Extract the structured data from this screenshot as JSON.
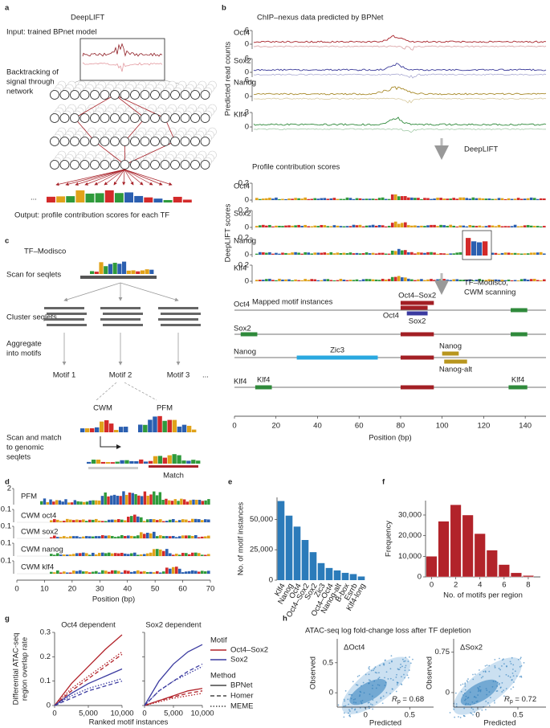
{
  "panel_a": {
    "letter": "a",
    "title": "DeepLIFT",
    "input": "Input: trained BPnet model",
    "backtrack": [
      "Backtracking of",
      "signal through",
      "network"
    ],
    "ellipsis": "...",
    "output": "Output: profile contribution scores for each TF"
  },
  "panel_b": {
    "letter": "b",
    "title": "ChIP–nexus data predicted by BPNet",
    "ylabel": "Predicted read counts",
    "tracks": [
      {
        "name": "Oct4",
        "color": "#a8232a",
        "yticks": [
          0,
          6
        ]
      },
      {
        "name": "Sox2",
        "color": "#3b3b9a",
        "yticks": [
          0,
          6
        ]
      },
      {
        "name": "Nanog",
        "color": "#a88a2a",
        "yticks": [
          0,
          6
        ]
      },
      {
        "name": "Klf4",
        "color": "#2f8a3b",
        "yticks": [
          0,
          3
        ]
      }
    ],
    "step1": "DeepLIFT",
    "contrib_title": "Profile contribution scores",
    "contrib_ylabel": "DeepLIFT scores",
    "contrib_yticks": [
      0,
      0.2
    ],
    "step2": [
      "TF–Modisco,",
      "CWM scanning"
    ],
    "motif_title": "Mapped motif instances",
    "lanes": [
      [
        {
          "start": 80,
          "end": 96,
          "color": "#a31f24",
          "label": "Oct4–Sox2"
        },
        {
          "start": 80,
          "end": 93,
          "color": "#a31f24",
          "label": "Oct4"
        },
        {
          "start": 83,
          "end": 93,
          "color": "#3a3aa0",
          "label": "Sox2"
        },
        {
          "start": 133,
          "end": 141,
          "color": "#2f8a3b"
        }
      ],
      [
        {
          "start": 3,
          "end": 11,
          "color": "#2f8a3b"
        },
        {
          "start": 80,
          "end": 96,
          "color": "#a31f24"
        },
        {
          "start": 133,
          "end": 141,
          "color": "#2f8a3b"
        }
      ],
      [
        {
          "start": 30,
          "end": 69,
          "color": "#29a8e0",
          "label": "Zic3"
        },
        {
          "start": 80,
          "end": 96,
          "color": "#a31f24"
        },
        {
          "start": 100,
          "end": 108,
          "color": "#b8961e",
          "label": "Nanog"
        },
        {
          "start": 101,
          "end": 112,
          "color": "#b8961e",
          "label": "Nanog-alt"
        }
      ],
      [
        {
          "start": 10,
          "end": 18,
          "color": "#2f8a3b",
          "label": "Klf4"
        },
        {
          "start": 80,
          "end": 96,
          "color": "#a31f24"
        },
        {
          "start": 132,
          "end": 141,
          "color": "#2f8a3b",
          "label": "Klf4"
        }
      ]
    ],
    "xlim": [
      0,
      150
    ],
    "xticks": [
      0,
      20,
      40,
      60,
      80,
      100,
      120,
      140
    ],
    "xlabel": "Position (bp)"
  },
  "panel_c": {
    "letter": "c",
    "title": "TF–Modisco",
    "scan": "Scan for seqlets",
    "cluster": "Cluster seqlets",
    "aggregate": [
      "Aggregate",
      "into motifs"
    ],
    "motifs": [
      "Motif 1",
      "Motif 2",
      "Motif 3"
    ],
    "ellipsis": "...",
    "cwm": "CWM",
    "pfm": "PFM",
    "match_steps": [
      "Scan and match",
      "to genomic",
      "seqlets"
    ],
    "match_label": "Match"
  },
  "panel_d": {
    "letter": "d",
    "rows": [
      {
        "name": "PFM",
        "ytick": 2
      },
      {
        "name": "CWM oct4",
        "ytick": 0.1
      },
      {
        "name": "CWM sox2",
        "ytick": 0.1
      },
      {
        "name": "CWM nanog",
        "ytick": 0.1
      },
      {
        "name": "CWM klf4",
        "ytick": 0.1
      }
    ],
    "xlim": [
      0,
      70
    ],
    "xticks": [
      0,
      10,
      20,
      30,
      40,
      50,
      60,
      70
    ],
    "xlabel": "Position (bp)"
  },
  "chart_data": [
    {
      "type": "bar",
      "letter": "e",
      "ylabel": "No. of motif instances",
      "categories": [
        "Klf4",
        "Nanog",
        "Oct4",
        "Oct4–Sox2",
        "Sox2",
        "Zic3",
        "Oct4–Oct4",
        "Nanog-alt",
        "B-box",
        "Esrrb",
        "Klf4-long"
      ],
      "values": [
        65000,
        53000,
        44000,
        33000,
        23000,
        14000,
        10000,
        8000,
        6000,
        5000,
        3000
      ],
      "color": "#2b7bba",
      "ylim": [
        0,
        68000
      ],
      "yticks": [
        0,
        {
          "value": 25000,
          "label": "25,000"
        },
        {
          "value": 50000,
          "label": "50,000"
        }
      ]
    },
    {
      "type": "histogram",
      "letter": "f",
      "ylabel": "Frequency",
      "xlabel": "No. of motifs per region",
      "x": [
        0,
        1,
        2,
        3,
        4,
        5,
        6,
        7,
        8
      ],
      "values": [
        10000,
        27000,
        35000,
        30000,
        21000,
        13000,
        6000,
        2000,
        700
      ],
      "color": "#b2232a",
      "xlim": [
        -0.5,
        9
      ],
      "xticks": [
        0,
        2,
        4,
        6,
        8
      ],
      "ylim": [
        0,
        37000
      ],
      "yticks": [
        0,
        {
          "value": 10000,
          "label": "10,000"
        },
        {
          "value": 20000,
          "label": "20,000"
        },
        {
          "value": 30000,
          "label": "30,000"
        }
      ]
    },
    {
      "type": "line",
      "letter": "g",
      "ylabel": [
        "Differential ATAC-seq",
        "region overlap rate"
      ],
      "xlabel": "Ranked motif instances",
      "x": [
        0,
        2500,
        5000,
        7500,
        10000
      ],
      "xlim": [
        0,
        10000
      ],
      "xticks": [
        0,
        {
          "value": 5000,
          "label": "5,000"
        },
        {
          "value": 10000,
          "label": "10,000"
        }
      ],
      "ylim": [
        0,
        0.3
      ],
      "yticks": [
        0,
        0.1,
        0.2,
        0.3
      ],
      "legend": {
        "motif_title": "Motif",
        "method_title": "Method",
        "motifs": [
          {
            "name": "Oct4–Sox2",
            "color": "#b2232a"
          },
          {
            "name": "Sox2",
            "color": "#3b3ba0"
          }
        ],
        "methods": [
          {
            "name": "BPNet",
            "dash": "solid"
          },
          {
            "name": "Homer",
            "dash": "dashed"
          },
          {
            "name": "MEME",
            "dash": "dotted"
          }
        ]
      },
      "panels": [
        {
          "title": "Oct4 dependent",
          "series": [
            [
              [
                0,
                0.09,
                0.16,
                0.23,
                0.29
              ],
              [
                0,
                0.06,
                0.11,
                0.16,
                0.21
              ],
              [
                0,
                0.07,
                0.12,
                0.17,
                0.22
              ]
            ],
            [
              [
                0,
                0.05,
                0.09,
                0.12,
                0.15
              ],
              [
                0,
                0.03,
                0.06,
                0.08,
                0.1
              ],
              [
                0,
                0.04,
                0.07,
                0.09,
                0.11
              ]
            ]
          ]
        },
        {
          "title": "Sox2 dependent",
          "series": [
            [
              [
                0,
                0.02,
                0.04,
                0.06,
                0.07
              ],
              [
                0,
                0.02,
                0.035,
                0.05,
                0.06
              ],
              [
                0,
                0.015,
                0.03,
                0.04,
                0.05
              ]
            ],
            [
              [
                0,
                0.1,
                0.17,
                0.22,
                0.25
              ],
              [
                0,
                0.06,
                0.1,
                0.14,
                0.17
              ],
              [
                0,
                0.06,
                0.1,
                0.13,
                0.16
              ]
            ]
          ]
        }
      ]
    }
  ],
  "panel_h": {
    "letter": "h",
    "title": "ATAC-seq log fold-change loss after TF depletion",
    "plots": [
      {
        "label": "ΔOct4",
        "ylabel": "Observed",
        "xlabel": "Predicted",
        "xlim": [
          -0.32,
          0.77
        ],
        "ylim": [
          -0.24,
          0.9
        ],
        "xticks": [
          0,
          0.5
        ],
        "yticks": [
          0,
          0.5
        ],
        "r_symbol": "R",
        "r_sub": "p",
        "r_value": " = 0.68"
      },
      {
        "label": "ΔSox2",
        "ylabel": "Observed",
        "xlabel": "Predicted",
        "xlim": [
          -0.3,
          0.85
        ],
        "ylim": [
          -0.27,
          1.0
        ],
        "xticks": [
          0,
          0.5
        ],
        "yticks": [
          0,
          0.75
        ],
        "r_symbol": "R",
        "r_sub": "p",
        "r_value": " = 0.72"
      }
    ]
  }
}
